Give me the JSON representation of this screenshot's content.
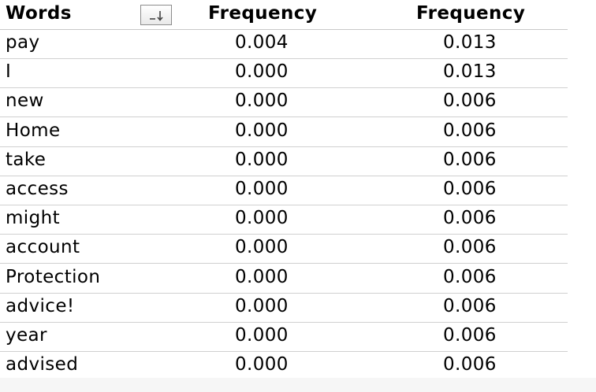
{
  "table": {
    "headers": {
      "words": "Words",
      "frequency_1": "Frequency",
      "frequency_2": "Frequency"
    },
    "sort_icon": "sort-descending-icon",
    "rows": [
      {
        "word": "pay",
        "f1": "0.004",
        "f2": "0.013"
      },
      {
        "word": "I",
        "f1": "0.000",
        "f2": "0.013"
      },
      {
        "word": "new",
        "f1": "0.000",
        "f2": "0.006"
      },
      {
        "word": "Home",
        "f1": "0.000",
        "f2": "0.006"
      },
      {
        "word": "take",
        "f1": "0.000",
        "f2": "0.006"
      },
      {
        "word": "access",
        "f1": "0.000",
        "f2": "0.006"
      },
      {
        "word": "might",
        "f1": "0.000",
        "f2": "0.006"
      },
      {
        "word": "account",
        "f1": "0.000",
        "f2": "0.006"
      },
      {
        "word": "Protection",
        "f1": "0.000",
        "f2": "0.006"
      },
      {
        "word": "advice!",
        "f1": "0.000",
        "f2": "0.006"
      },
      {
        "word": "year",
        "f1": "0.000",
        "f2": "0.006"
      },
      {
        "word": "advised",
        "f1": "0.000",
        "f2": "0.006"
      }
    ]
  }
}
